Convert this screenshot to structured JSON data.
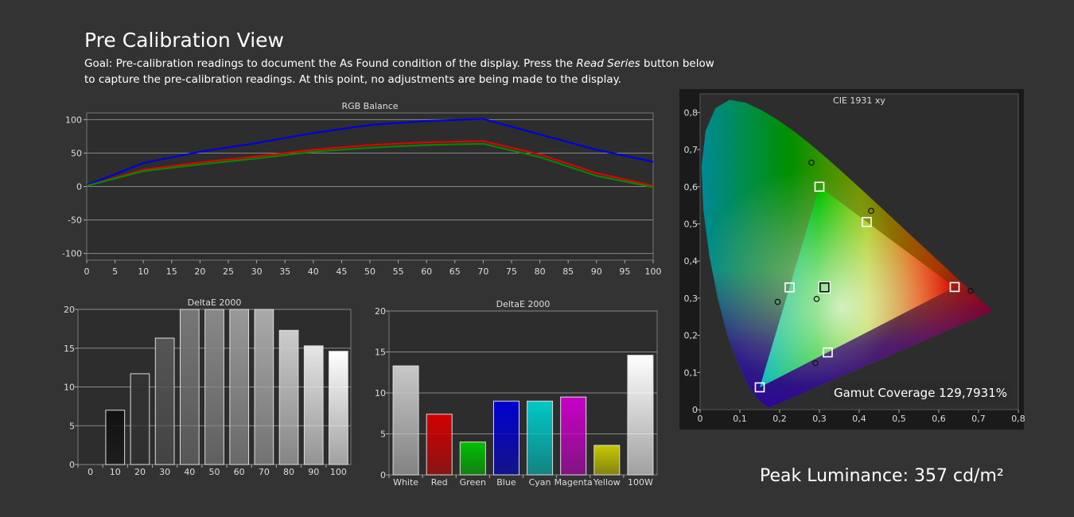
{
  "header": {
    "title": "Pre Calibration View",
    "goal_prefix": "Goal: Pre-calibration readings to document the As Found condition of the display. Press the ",
    "goal_button": "Read Series",
    "goal_suffix": " button below to capture the pre-calibration readings. At this point, no adjustments are being made to the display."
  },
  "colors": {
    "background": "#333333",
    "plot_background": "#2d2d2d",
    "red": "#e00000",
    "green": "#008800",
    "blue": "#0000e0"
  },
  "peak": {
    "label": "Peak Luminance: 357 cd/m²"
  },
  "chart_data": [
    {
      "id": "rgb",
      "type": "line",
      "title": "RGB Balance",
      "x": [
        0,
        10,
        20,
        30,
        40,
        50,
        60,
        70,
        80,
        90,
        100
      ],
      "xticks": [
        0,
        5,
        10,
        15,
        20,
        25,
        30,
        35,
        40,
        45,
        50,
        55,
        60,
        65,
        70,
        75,
        80,
        85,
        90,
        95,
        100
      ],
      "ylim": [
        -110,
        110
      ],
      "yticks": [
        -100,
        -50,
        0,
        50,
        100
      ],
      "grid": true,
      "series": [
        {
          "color": "#0000e0",
          "values": [
            2,
            35,
            52,
            65,
            80,
            92,
            98,
            101,
            78,
            55,
            37
          ]
        },
        {
          "color": "#e00000",
          "values": [
            1,
            25,
            36,
            45,
            55,
            62,
            66,
            68,
            48,
            20,
            1
          ]
        },
        {
          "color": "#008800",
          "values": [
            1,
            23,
            33,
            42,
            52,
            58,
            62,
            64,
            44,
            16,
            -1
          ]
        }
      ]
    },
    {
      "id": "de_gray",
      "type": "bar",
      "title": "DeltaE 2000",
      "categories": [
        "0",
        "10",
        "20",
        "30",
        "40",
        "50",
        "60",
        "70",
        "80",
        "90",
        "100"
      ],
      "values": [
        0,
        7.0,
        11.7,
        16.3,
        20,
        20,
        20,
        20,
        17.3,
        15.3,
        14.6
      ],
      "colors": [
        "#000000",
        "#111111",
        "#333333",
        "#555555",
        "#777777",
        "#888888",
        "#999999",
        "#aaaaaa",
        "#cccccc",
        "#e6e6e6",
        "#ffffff"
      ],
      "ylim": [
        0,
        20
      ],
      "yticks": [
        0,
        5,
        10,
        15,
        20
      ]
    },
    {
      "id": "de_color",
      "type": "bar",
      "title": "DeltaE 2000",
      "categories": [
        "White",
        "Red",
        "Green",
        "Blue",
        "Cyan",
        "Magenta",
        "Yellow",
        "100W"
      ],
      "values": [
        13.3,
        7.4,
        4.0,
        9.0,
        9.0,
        9.5,
        3.6,
        14.6
      ],
      "colors": [
        "#c8c8c8",
        "#d20000",
        "#00c000",
        "#0000d2",
        "#00c8c8",
        "#c800c8",
        "#c8c800",
        "#ffffff"
      ],
      "ylim": [
        0,
        20
      ],
      "yticks": [
        0,
        5,
        10,
        15,
        20
      ]
    },
    {
      "id": "cie",
      "type": "scatter",
      "title": "CIE 1931 xy",
      "xlim": [
        0,
        0.8
      ],
      "ylim": [
        0,
        0.85
      ],
      "xticks": [
        "0",
        "0,1",
        "0,2",
        "0,3",
        "0,4",
        "0,5",
        "0,6",
        "0,7",
        "0,8"
      ],
      "yticks": [
        "0",
        "0,1",
        "0,2",
        "0,3",
        "0,4",
        "0,5",
        "0,6",
        "0,7",
        "0,8"
      ],
      "gamut_coverage": "Gamut Coverage 129,7931%",
      "target_gamut": [
        [
          0.64,
          0.33
        ],
        [
          0.3,
          0.6
        ],
        [
          0.15,
          0.06
        ]
      ],
      "targets": [
        [
          0.64,
          0.33
        ],
        [
          0.3,
          0.6
        ],
        [
          0.15,
          0.06
        ],
        [
          0.225,
          0.329
        ],
        [
          0.321,
          0.154
        ],
        [
          0.419,
          0.505
        ],
        [
          0.3127,
          0.329
        ]
      ],
      "measured": [
        [
          0.68,
          0.32
        ],
        [
          0.28,
          0.665
        ],
        [
          0.195,
          0.29
        ],
        [
          0.43,
          0.535
        ],
        [
          0.29,
          0.125
        ],
        [
          0.293,
          0.298
        ]
      ]
    }
  ]
}
